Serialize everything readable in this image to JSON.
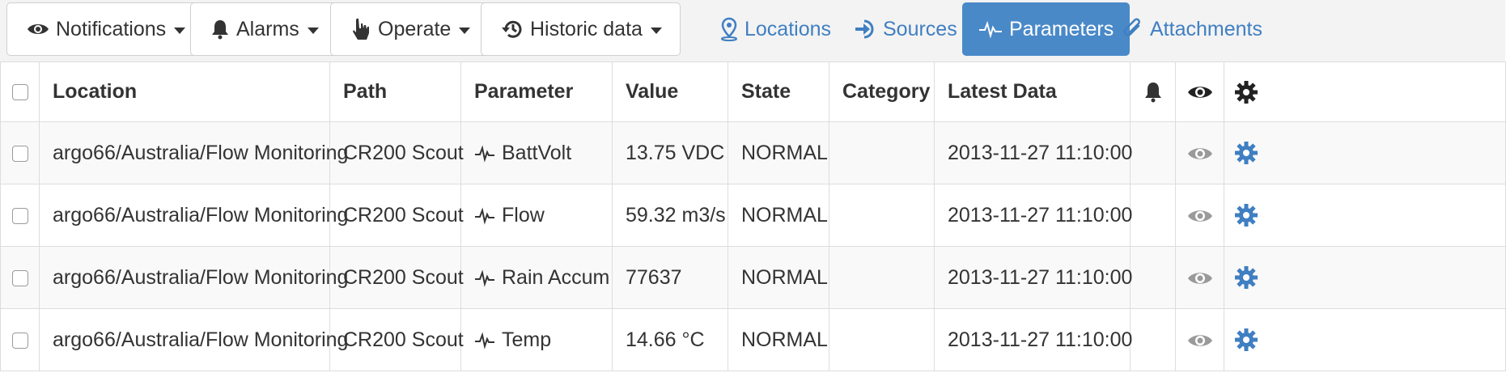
{
  "toolbar": {
    "dropdowns": [
      {
        "label": "Notifications",
        "icon": "eye-icon"
      },
      {
        "label": "Alarms",
        "icon": "bell-icon"
      },
      {
        "label": "Operate",
        "icon": "hand-pointer-icon"
      },
      {
        "label": "Historic data",
        "icon": "history-icon"
      }
    ],
    "nav": [
      {
        "label": "Locations",
        "icon": "map-marker-icon",
        "active": false
      },
      {
        "label": "Sources",
        "icon": "sign-in-icon",
        "active": false
      },
      {
        "label": "Parameters",
        "icon": "pulse-icon",
        "active": true
      },
      {
        "label": "Attachments",
        "icon": "paperclip-icon",
        "active": false
      }
    ]
  },
  "colors": {
    "accent": "#4a89c8",
    "link": "#3f7fc2",
    "gear": "#3f7fc2",
    "eye_muted": "#9a9a9a"
  },
  "table": {
    "headers": {
      "location": "Location",
      "path": "Path",
      "parameter": "Parameter",
      "value": "Value",
      "state": "State",
      "category": "Category",
      "latest": "Latest Data"
    },
    "header_icons": [
      "bell-icon",
      "eye-icon",
      "gear-icon"
    ],
    "rows": [
      {
        "location": "argo66/Australia/Flow Monitoring",
        "path": "CR200 Scout",
        "parameter": "BattVolt",
        "value": "13.75 VDC",
        "state": "NORMAL",
        "category": "",
        "latest": "2013-11-27 11:10:00"
      },
      {
        "location": "argo66/Australia/Flow Monitoring",
        "path": "CR200 Scout",
        "parameter": "Flow",
        "value": "59.32 m3/s",
        "state": "NORMAL",
        "category": "",
        "latest": "2013-11-27 11:10:00"
      },
      {
        "location": "argo66/Australia/Flow Monitoring",
        "path": "CR200 Scout",
        "parameter": "Rain Accum",
        "value": "77637",
        "state": "NORMAL",
        "category": "",
        "latest": "2013-11-27 11:10:00"
      },
      {
        "location": "argo66/Australia/Flow Monitoring",
        "path": "CR200 Scout",
        "parameter": "Temp",
        "value": "14.66 °C",
        "state": "NORMAL",
        "category": "",
        "latest": "2013-11-27 11:10:00"
      }
    ]
  }
}
